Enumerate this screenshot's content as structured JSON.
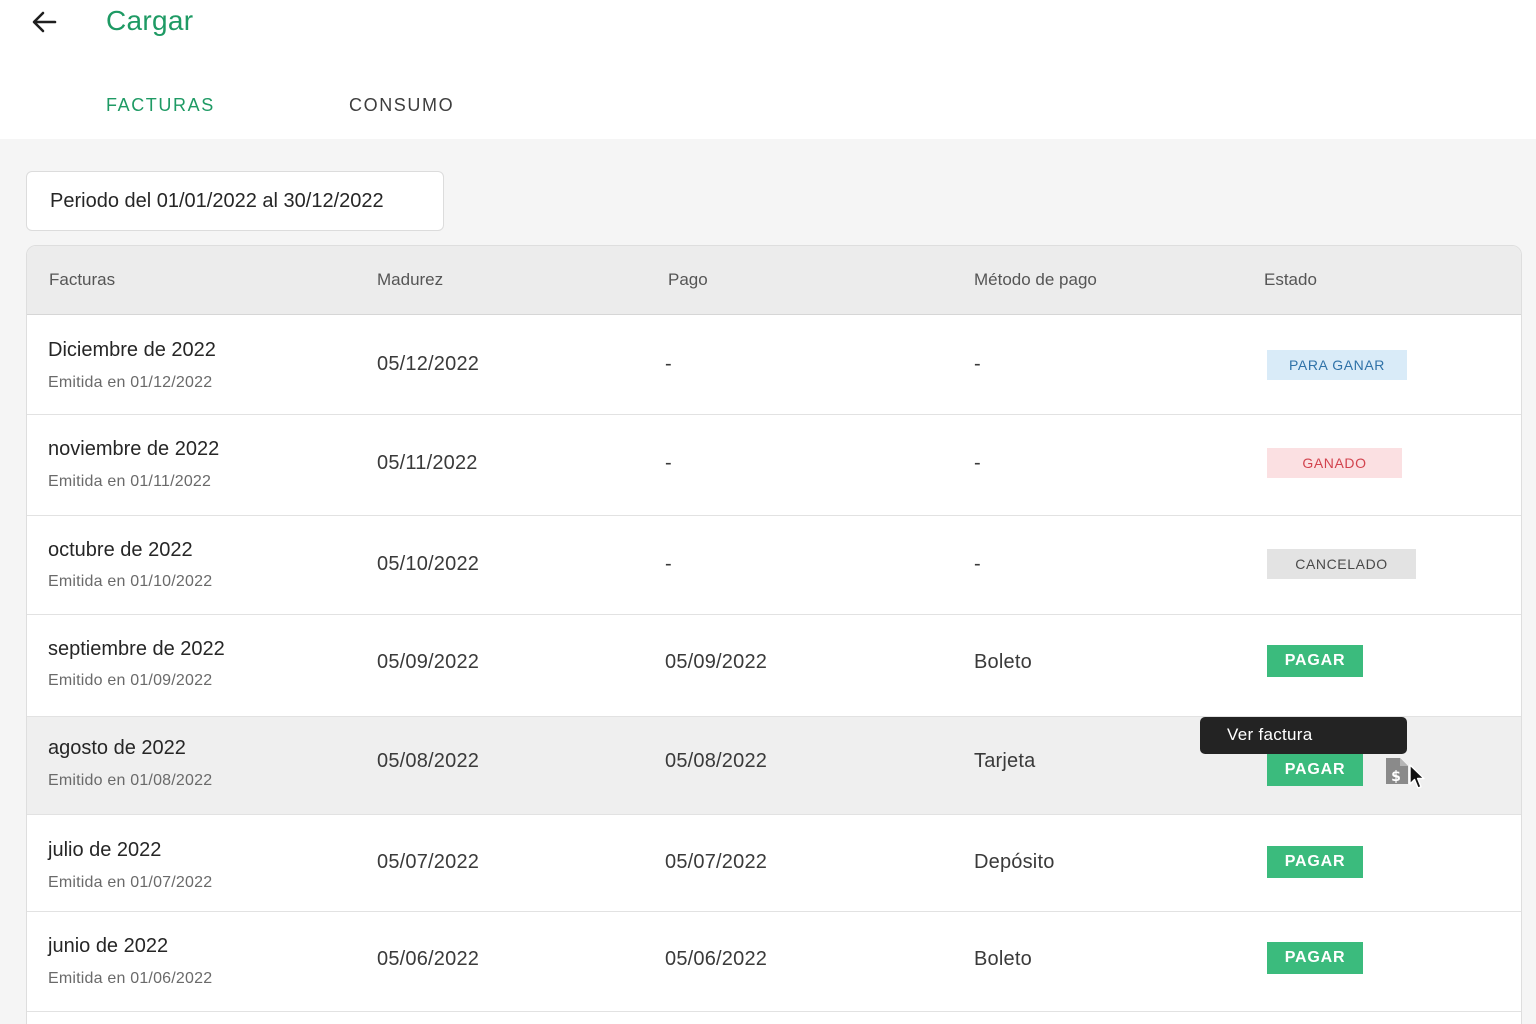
{
  "header": {
    "back_icon": "arrow-left-icon",
    "title": "Cargar"
  },
  "tabs": [
    {
      "label": "FACTURAS",
      "active": true
    },
    {
      "label": "CONSUMO",
      "active": false
    }
  ],
  "period": {
    "label": "Periodo del 01/01/2022 al 30/12/2022"
  },
  "table": {
    "headers": [
      "Facturas",
      "Madurez",
      "Pago",
      "Método de pago",
      "Estado"
    ],
    "rows": [
      {
        "title": "Diciembre de 2022",
        "issued": "Emitida en 01/12/2022",
        "due": "05/12/2022",
        "paid": "-",
        "method": "-",
        "status": "PARA GANAR"
      },
      {
        "title": "noviembre de 2022",
        "issued": "Emitida en 01/11/2022",
        "due": "05/11/2022",
        "paid": "-",
        "method": "-",
        "status": "GANADO"
      },
      {
        "title": "octubre de 2022",
        "issued": "Emitida en 01/10/2022",
        "due": "05/10/2022",
        "paid": "-",
        "method": "-",
        "status": "CANCELADO"
      },
      {
        "title": "septiembre de 2022",
        "issued": "Emitido en 01/09/2022",
        "due": "05/09/2022",
        "paid": "05/09/2022",
        "method": "Boleto",
        "status": "PAGAR"
      },
      {
        "title": "agosto de 2022",
        "issued": "Emitido en 01/08/2022",
        "due": "05/08/2022",
        "paid": "05/08/2022",
        "method": "Tarjeta",
        "status": "PAGAR"
      },
      {
        "title": "julio de 2022",
        "issued": "Emitida en 01/07/2022",
        "due": "05/07/2022",
        "paid": "05/07/2022",
        "method": "Depósito",
        "status": "PAGAR"
      },
      {
        "title": "junio de 2022",
        "issued": "Emitida en 01/06/2022",
        "due": "05/06/2022",
        "paid": "05/06/2022",
        "method": "Boleto",
        "status": "PAGAR"
      }
    ]
  },
  "tooltip": {
    "text": "Ver factura"
  },
  "icons": {
    "invoice": "invoice-document-icon",
    "cursor": "mouse-cursor-icon"
  },
  "colors": {
    "brand_green": "#1e9a64",
    "pay_button": "#3bbb7d",
    "badge_blue": "#d9ebf8",
    "badge_red": "#fbe0e2",
    "badge_grey": "#e3e3e3"
  }
}
